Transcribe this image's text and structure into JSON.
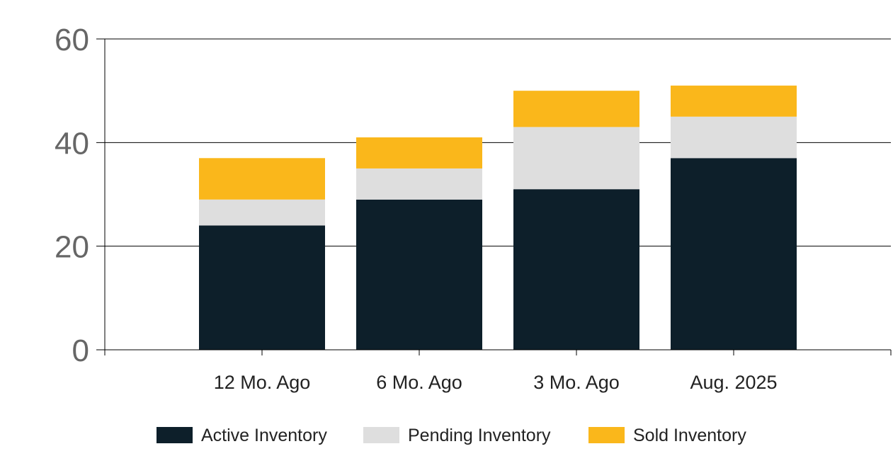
{
  "chart_data": {
    "type": "bar",
    "stacked": true,
    "categories": [
      "12 Mo. Ago",
      "6 Mo. Ago",
      "3 Mo. Ago",
      "Aug. 2025"
    ],
    "series": [
      {
        "name": "Active Inventory",
        "values": [
          24,
          29,
          31,
          37
        ],
        "color": "#0d1f2a"
      },
      {
        "name": "Pending Inventory",
        "values": [
          5,
          6,
          12,
          8
        ],
        "color": "#dedede"
      },
      {
        "name": "Sold Inventory",
        "values": [
          8,
          6,
          7,
          6
        ],
        "color": "#fab71b"
      }
    ],
    "title": "",
    "xlabel": "",
    "ylabel": "",
    "ylim": [
      0,
      60
    ],
    "yticks": [
      "0",
      "20",
      "40",
      "60"
    ],
    "grid": true,
    "legend_position": "bottom"
  }
}
